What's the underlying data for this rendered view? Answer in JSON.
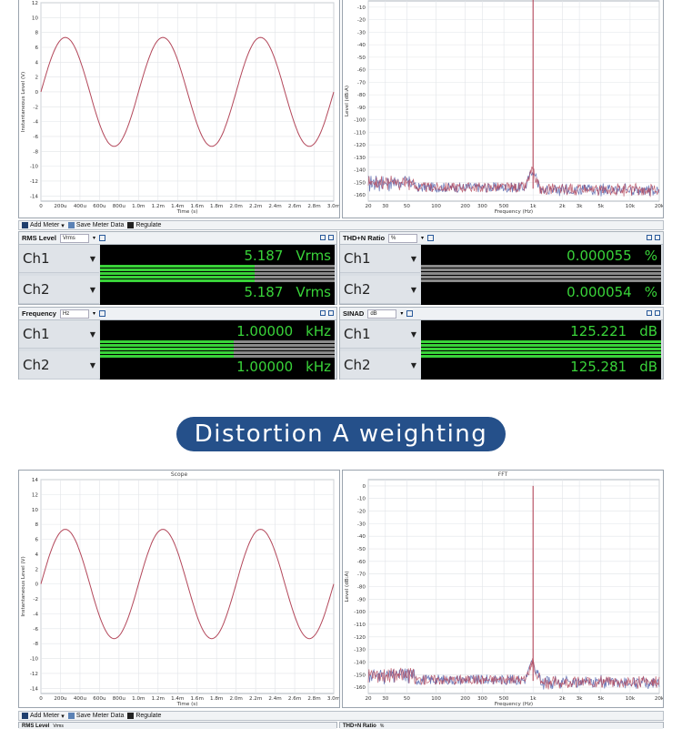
{
  "top": {
    "scope": {
      "ylabel": "Instantaneous Level (V)",
      "xlabel": "Time (s)",
      "yticks": [
        "12",
        "10",
        "8",
        "6",
        "4",
        "2",
        "0",
        "-2",
        "-4",
        "-6",
        "-8",
        "-10",
        "-12",
        "-14"
      ],
      "xticks": [
        "0",
        "200u",
        "400u",
        "600u",
        "800u",
        "1.0m",
        "1.2m",
        "1.4m",
        "1.6m",
        "1.8m",
        "2.0m",
        "2.2m",
        "2.4m",
        "2.6m",
        "2.8m",
        "3.0m"
      ]
    },
    "fft": {
      "ylabel": "Level (dB:A)",
      "xlabel": "Frequency (Hz)",
      "yticks": [
        "-10",
        "-20",
        "-30",
        "-40",
        "-50",
        "-60",
        "-70",
        "-80",
        "-90",
        "-100",
        "-110",
        "-120",
        "-130",
        "-140",
        "-150",
        "-160"
      ],
      "xticks": [
        "20",
        "30",
        "50",
        "100",
        "200",
        "300",
        "500",
        "1k",
        "2k",
        "3k",
        "5k",
        "10k",
        "20k"
      ]
    },
    "toolbar": {
      "add_meter": "Add Meter",
      "save_meter": "Save Meter Data",
      "regulate": "Regulate"
    },
    "meters": {
      "rms": {
        "title": "RMS Level",
        "unit": "Vrms",
        "ch1_label": "Ch1",
        "ch2_label": "Ch2",
        "ch1_value": "5.187",
        "ch2_value": "5.187",
        "ch1_unit": "Vrms",
        "ch2_unit": "Vrms",
        "bar_fraction": 0.66
      },
      "thdn": {
        "title": "THD+N Ratio",
        "unit": "%",
        "ch1_label": "Ch1",
        "ch2_label": "Ch2",
        "ch1_value": "0.000055",
        "ch2_value": "0.000054",
        "ch1_unit": "%",
        "ch2_unit": "%",
        "bar_fraction": 0.0
      },
      "freq": {
        "title": "Frequency",
        "unit": "Hz",
        "ch1_label": "Ch1",
        "ch2_label": "Ch2",
        "ch1_value": "1.00000",
        "ch2_value": "1.00000",
        "ch1_unit": "kHz",
        "ch2_unit": "kHz",
        "bar_fraction": 0.57
      },
      "sinad": {
        "title": "SINAD",
        "unit": "dB",
        "ch1_label": "Ch1",
        "ch2_label": "Ch2",
        "ch1_value": "125.221",
        "ch2_value": "125.281",
        "ch1_unit": "dB",
        "ch2_unit": "dB",
        "bar_fraction": 1.0
      }
    }
  },
  "banner": {
    "text": "Distortion A weighting"
  },
  "bottom": {
    "scope": {
      "title": "Scope",
      "ylabel": "Instantaneous Level (V)",
      "xlabel": "Time (s)",
      "yticks": [
        "14",
        "12",
        "10",
        "8",
        "6",
        "4",
        "2",
        "0",
        "-2",
        "-4",
        "-6",
        "-8",
        "-10",
        "-12",
        "-14"
      ],
      "xticks": [
        "0",
        "200u",
        "400u",
        "600u",
        "800u",
        "1.0m",
        "1.2m",
        "1.4m",
        "1.6m",
        "1.8m",
        "2.0m",
        "2.2m",
        "2.4m",
        "2.6m",
        "2.8m",
        "3.0m"
      ]
    },
    "fft": {
      "title": "FFT",
      "ylabel": "Level (dB:A)",
      "xlabel": "Frequency (Hz)",
      "yticks": [
        "0",
        "-10",
        "-20",
        "-30",
        "-40",
        "-50",
        "-60",
        "-70",
        "-80",
        "-90",
        "-100",
        "-110",
        "-120",
        "-130",
        "-140",
        "-150",
        "-160"
      ],
      "xticks": [
        "20",
        "30",
        "50",
        "100",
        "200",
        "300",
        "500",
        "1k",
        "2k",
        "3k",
        "5k",
        "10k",
        "20k"
      ]
    },
    "toolbar": {
      "add_meter": "Add Meter",
      "save_meter": "Save Meter Data",
      "regulate": "Regulate"
    },
    "meters": {
      "rms_title": "RMS Level",
      "rms_unit": "Vrms",
      "thdn_title": "THD+N Ratio",
      "thdn_unit": "%"
    }
  },
  "colors": {
    "trace_ch1": "#b3475a",
    "trace_ch2": "#4a5aa8",
    "meter_green": "#39d339",
    "banner_bg": "#25508a"
  }
}
